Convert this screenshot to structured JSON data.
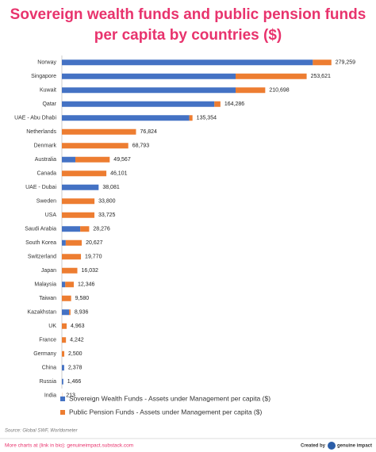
{
  "chart_data": {
    "type": "bar",
    "orientation": "horizontal",
    "stacked": true,
    "title": [
      "Sovereign wealth funds and public pension funds",
      "per capita by countries ($)"
    ],
    "categories": [
      "Norway",
      "Singapore",
      "Kuwait",
      "Qatar",
      "UAE - Abu Dhabi",
      "Netherlands",
      "Denmark",
      "Australia",
      "Canada",
      "UAE - Dubai",
      "Sweden",
      "USA",
      "Saudi Arabia",
      "South Korea",
      "Switzerland",
      "Japan",
      "Malaysia",
      "Taiwan",
      "Kazakhstan",
      "UK",
      "France",
      "Germany",
      "China",
      "Russia",
      "India"
    ],
    "series": [
      {
        "name": "Sovereign Wealth Funds - Assets under Management per capita ($)",
        "color": "#4472c4",
        "values": [
          260000,
          180000,
          180000,
          158000,
          132000,
          0,
          0,
          14000,
          0,
          38081,
          0,
          0,
          19000,
          4000,
          0,
          0,
          3500,
          0,
          7500,
          0,
          0,
          0,
          2378,
          1466,
          0
        ]
      },
      {
        "name": "Public Pension Funds - Assets under Management per capita ($)",
        "color": "#ed7d31",
        "values": [
          19259,
          73621,
          30698,
          6286,
          3354,
          76824,
          68793,
          35567,
          46101,
          0,
          33800,
          33725,
          9276,
          16627,
          19770,
          16032,
          8846,
          9580,
          1436,
          4963,
          4242,
          2500,
          0,
          0,
          213
        ]
      }
    ],
    "totals": [
      279259,
      253621,
      210698,
      164286,
      135354,
      76824,
      68793,
      49567,
      46101,
      38081,
      33800,
      33725,
      28276,
      20627,
      19770,
      16032,
      12346,
      9580,
      8936,
      4963,
      4242,
      2500,
      2378,
      1466,
      213
    ],
    "value_labels": [
      "279,259",
      "253,621",
      "210,698",
      "164,286",
      "135,354",
      "76,824",
      "68,793",
      "49,567",
      "46,101",
      "38,081",
      "33,800",
      "33,725",
      "28,276",
      "20,627",
      "19,770",
      "16,032",
      "12,346",
      "9,580",
      "8,936",
      "4,963",
      "4,242",
      "2,500",
      "2,378",
      "1,466",
      "213"
    ],
    "xlim": [
      0,
      300000
    ],
    "source": "Source: Global SWF, Worldometer",
    "footer_left": "More charts at (link in bio): genuineimpact.substack.com",
    "footer_credit": "Created by",
    "footer_brand": "genuine impact"
  }
}
